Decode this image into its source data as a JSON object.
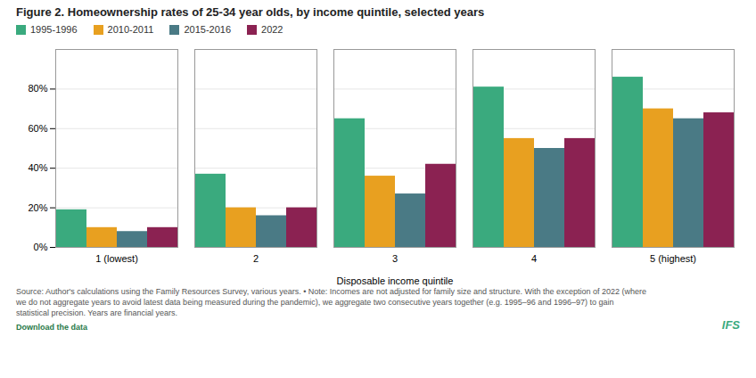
{
  "chart_data": {
    "type": "bar",
    "title": "Figure 2. Homeownership rates of 25-34 year olds, by income quintile, selected years",
    "xlabel": "Disposable income quintile",
    "categories": [
      "1 (lowest)",
      "2",
      "3",
      "4",
      "5 (highest)"
    ],
    "series": [
      {
        "name": "1995-1996",
        "color": "#3aaa7e",
        "values": [
          19,
          37,
          65,
          81,
          86
        ]
      },
      {
        "name": "2010-2011",
        "color": "#e8a020",
        "values": [
          10,
          20,
          36,
          55,
          70
        ]
      },
      {
        "name": "2015-2016",
        "color": "#4a7a85",
        "values": [
          8,
          16,
          27,
          50,
          65
        ]
      },
      {
        "name": "2022",
        "color": "#8b2252",
        "values": [
          10,
          20,
          42,
          55,
          68
        ]
      }
    ],
    "ylim": [
      0,
      100
    ],
    "yticks": [
      {
        "value": 0,
        "label": "0%"
      },
      {
        "value": 20,
        "label": "20%"
      },
      {
        "value": 40,
        "label": "40%"
      },
      {
        "value": 60,
        "label": "60%"
      },
      {
        "value": 80,
        "label": "80%"
      }
    ],
    "grid": true,
    "legend": "top-left",
    "annotations": [
      "Source: Author's calculations using the Family Resources Survey, various years. • Note: Incomes are not adjusted for family size and structure. With the exception of 2022 (where\nwe do not aggregate years to avoid latest data being measured during the pandemic), we aggregate two consecutive years together (e.g. 1995–96 and 1996–97) to gain\nstatistical precision. Years are financial years.",
      "Download the data",
      "IFS"
    ]
  }
}
